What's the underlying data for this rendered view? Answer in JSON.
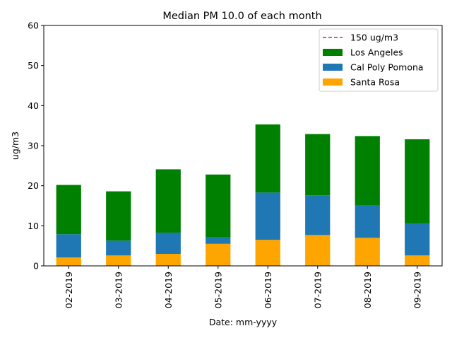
{
  "chart_data": {
    "type": "bar",
    "stacked": true,
    "title": "Median PM 10.0 of each month",
    "xlabel": "Date: mm-yyyy",
    "ylabel": "ug/m3",
    "ylim": [
      0,
      60
    ],
    "yticks": [
      "0",
      "10",
      "20",
      "30",
      "40",
      "50",
      "60"
    ],
    "categories": [
      "02-2019",
      "03-2019",
      "04-2019",
      "05-2019",
      "06-2019",
      "07-2019",
      "08-2019",
      "09-2019"
    ],
    "series": [
      {
        "name": "Santa Rosa",
        "color": "#ffa500",
        "values": [
          2.1,
          2.6,
          3.0,
          5.5,
          6.5,
          7.7,
          7.0,
          2.6
        ]
      },
      {
        "name": "Cal Poly Pomona",
        "color": "#1f77b4",
        "values": [
          5.8,
          3.7,
          5.3,
          1.6,
          11.8,
          9.9,
          8.1,
          8.0
        ]
      },
      {
        "name": "Los Angeles",
        "color": "#008000",
        "values": [
          12.3,
          12.3,
          15.8,
          15.7,
          17.0,
          15.3,
          17.3,
          21.0
        ]
      }
    ],
    "reference_line": {
      "name": "150 ug/m3",
      "value": 150,
      "color": "#d62728",
      "style": "dashed"
    },
    "legend": {
      "placement": "top-right",
      "entries": [
        {
          "label": "150 ug/m3",
          "kind": "line",
          "color": "#d62728"
        },
        {
          "label": "Los Angeles",
          "kind": "patch",
          "color": "#008000"
        },
        {
          "label": "Cal Poly Pomona",
          "kind": "patch",
          "color": "#1f77b4"
        },
        {
          "label": "Santa Rosa",
          "kind": "patch",
          "color": "#ffa500"
        }
      ]
    },
    "grid": false
  }
}
